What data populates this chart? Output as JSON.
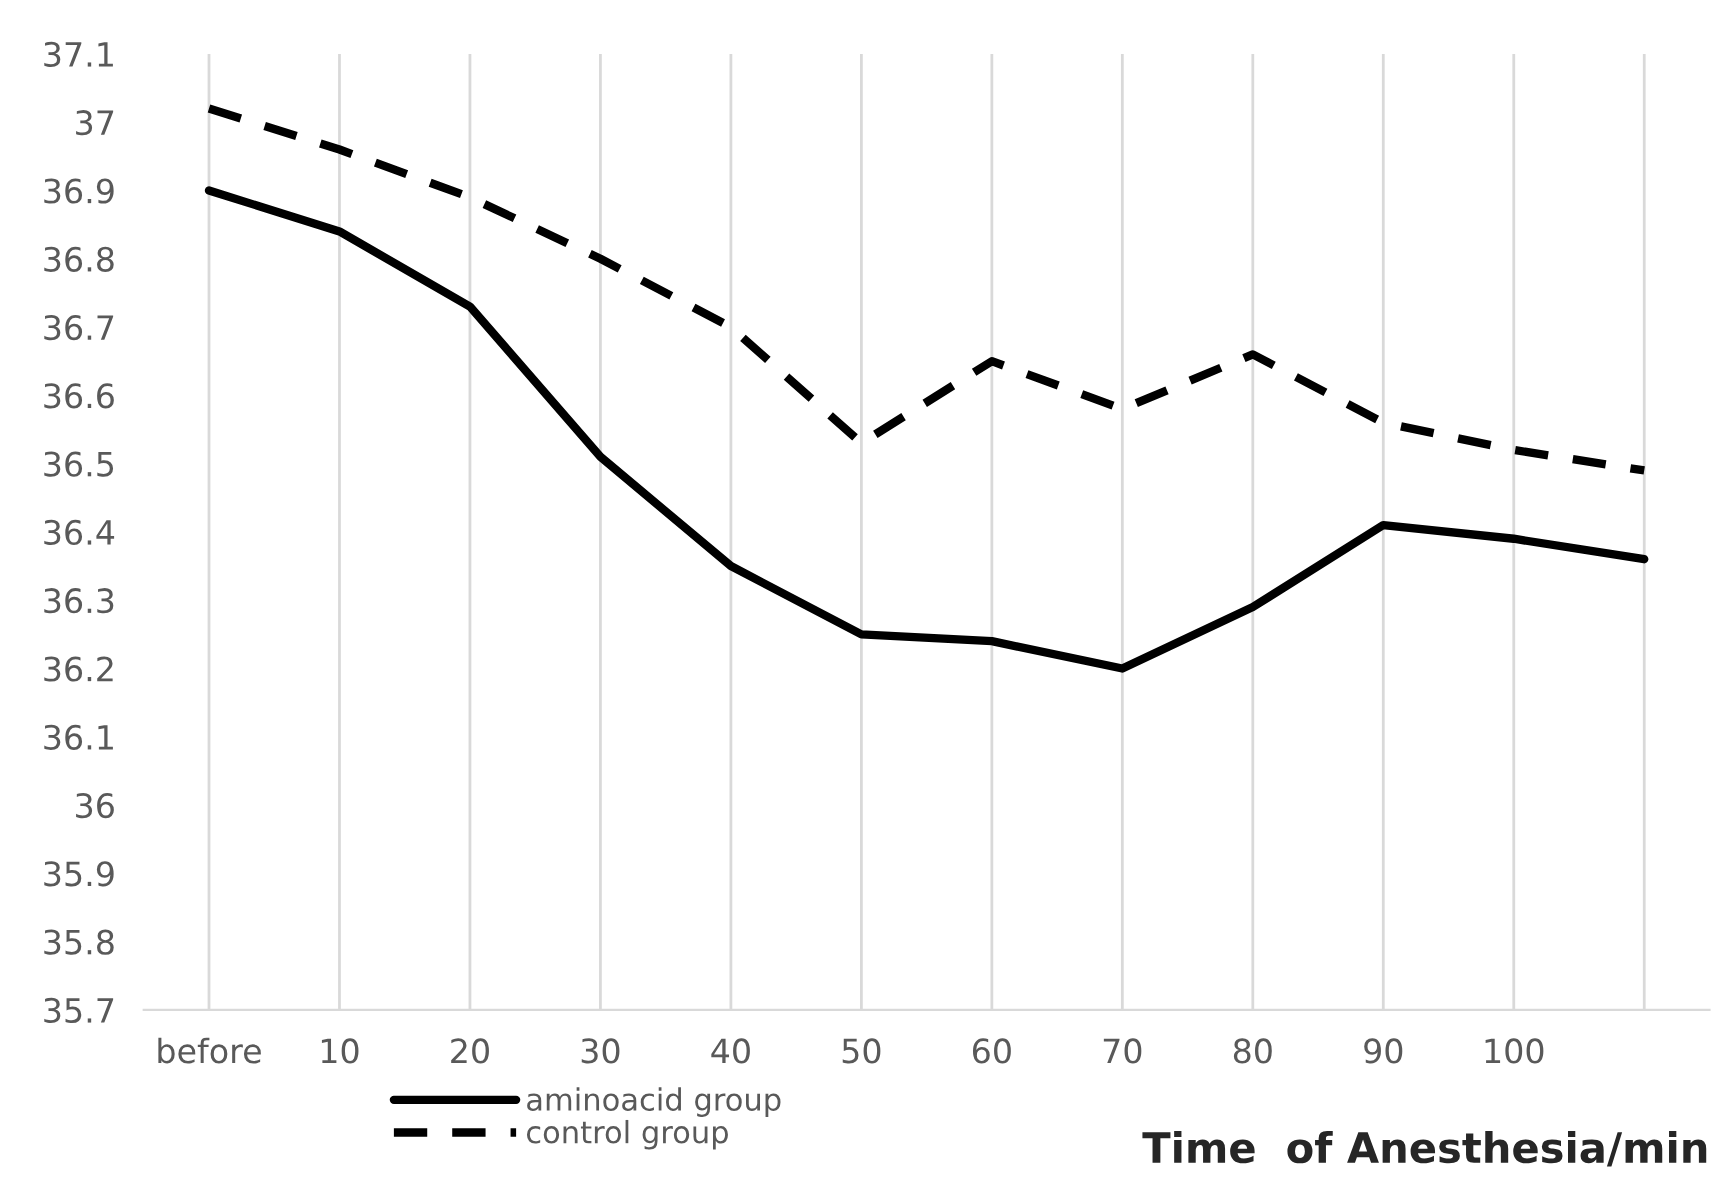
{
  "chart_data": {
    "type": "line",
    "xlabel": "Time  of Anesthesia/min",
    "categories": [
      "before",
      "10",
      "20",
      "30",
      "40",
      "50",
      "60",
      "70",
      "80",
      "90",
      "100",
      null
    ],
    "series": [
      {
        "name": "aminoacid group",
        "color": "#000000",
        "line_style": "solid",
        "values": [
          36.9,
          36.84,
          36.73,
          36.51,
          36.35,
          36.25,
          36.24,
          36.2,
          36.29,
          36.41,
          36.39,
          36.36
        ]
      },
      {
        "name": "control group",
        "color": "#000000",
        "line_style": "dashed",
        "values": [
          37.02,
          36.96,
          36.89,
          36.8,
          36.7,
          36.53,
          36.65,
          36.58,
          36.66,
          36.56,
          36.52,
          36.49
        ]
      }
    ],
    "ylim": [
      35.7,
      37.1
    ],
    "yticks": [
      35.7,
      35.8,
      35.9,
      36,
      36.1,
      36.2,
      36.3,
      36.4,
      36.5,
      36.6,
      36.7,
      36.8,
      36.9,
      37,
      37.1
    ],
    "grid": "x",
    "legend": "bottom left"
  }
}
